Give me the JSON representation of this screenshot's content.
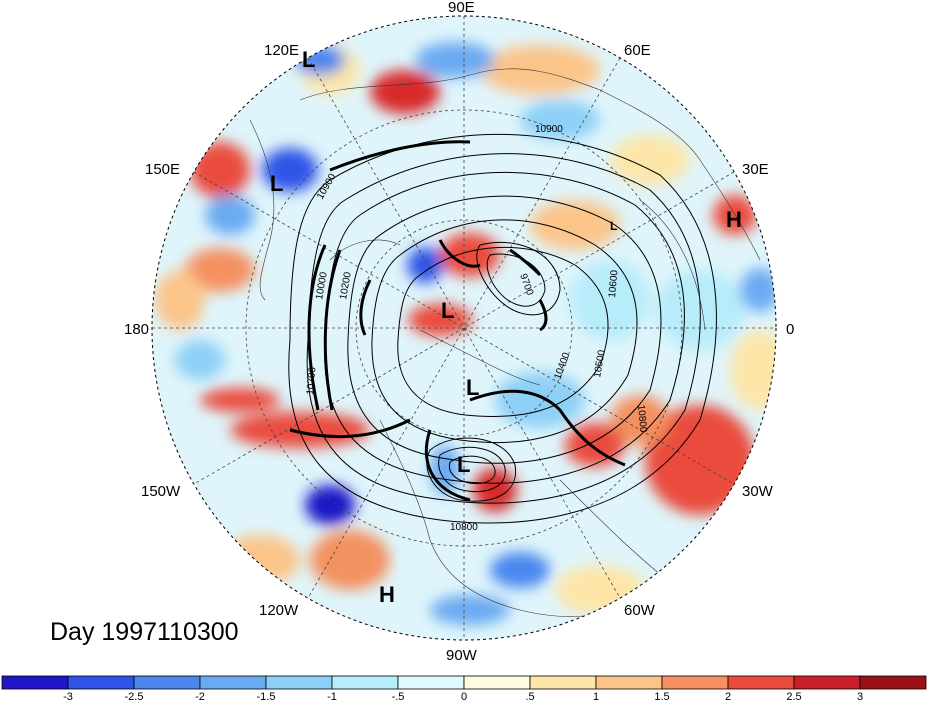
{
  "title": "Day 1997110300",
  "longitude_labels": [
    "90E",
    "60E",
    "30E",
    "0",
    "30W",
    "60W",
    "90W",
    "120W",
    "150W",
    "180",
    "150E",
    "120E"
  ],
  "centers": [
    "L",
    "L",
    "L",
    "L",
    "L",
    "H",
    "H",
    "L"
  ],
  "contour_labels": [
    "10900",
    "10900",
    "10200",
    "10000",
    "9700",
    "10600",
    "10500",
    "10400",
    "10800",
    "10800",
    "10700"
  ],
  "colorbar": {
    "ticks": [
      "-3",
      "-2.5",
      "-2",
      "-1.5",
      "-1",
      "-.5",
      "0",
      ".5",
      "1",
      "1.5",
      "2",
      "2.5",
      "3"
    ],
    "colors": [
      "#1e16c8",
      "#2f55e8",
      "#4a86ee",
      "#6aaaf1",
      "#8dd0f6",
      "#b7ecfb",
      "#e1f8fd",
      "#fffbe0",
      "#fde6a8",
      "#fbc58a",
      "#f49160",
      "#ea4b3c",
      "#cc1f2a",
      "#9c1018"
    ]
  }
}
